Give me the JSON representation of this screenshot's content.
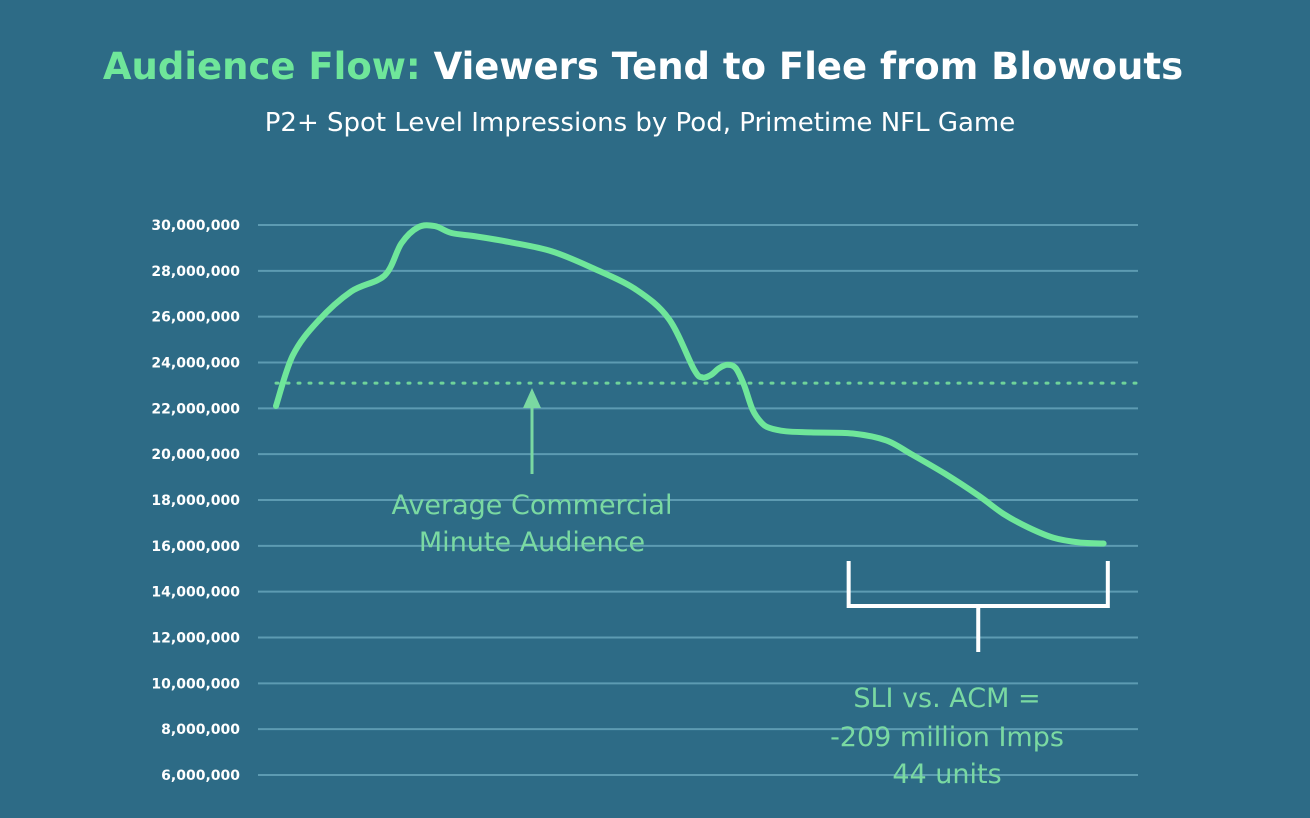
{
  "chart_data": {
    "type": "line",
    "title_highlight": "Audience Flow:",
    "title_rest": "Viewers Tend to Flee from Blowouts",
    "subtitle": "P2+ Spot Level Impressions by Pod, Primetime NFL Game",
    "xlabel": "",
    "ylabel": "",
    "ylim": [
      6000000,
      30000000
    ],
    "yticks": [
      {
        "value": 30000000,
        "label": "30,000,000"
      },
      {
        "value": 28000000,
        "label": "28,000,000"
      },
      {
        "value": 26000000,
        "label": "26,000,000"
      },
      {
        "value": 24000000,
        "label": "24,000,000"
      },
      {
        "value": 22000000,
        "label": "22,000,000"
      },
      {
        "value": 20000000,
        "label": "20,000,000"
      },
      {
        "value": 18000000,
        "label": "18,000,000"
      },
      {
        "value": 16000000,
        "label": "16,000,000"
      },
      {
        "value": 14000000,
        "label": "14,000,000"
      },
      {
        "value": 12000000,
        "label": "12,000,000"
      },
      {
        "value": 10000000,
        "label": "10,000,000"
      },
      {
        "value": 8000000,
        "label": "8,000,000"
      },
      {
        "value": 6000000,
        "label": "6,000,000"
      }
    ],
    "grid": true,
    "xlim": [
      0,
      100
    ],
    "series": [
      {
        "color": "#6fe69a",
        "x": [
          0,
          2,
          5,
          9,
          13,
          15,
          17,
          19,
          21,
          24,
          28,
          33,
          38,
          43,
          47,
          50,
          51,
          52,
          53,
          54,
          55,
          56,
          57,
          58,
          59,
          61,
          64,
          69,
          73,
          76,
          80,
          84,
          87,
          90,
          93,
          96,
          99
        ],
        "y": [
          22100000,
          24300000,
          25800000,
          27100000,
          27800000,
          29200000,
          29900000,
          29950000,
          29650000,
          29500000,
          29250000,
          28850000,
          28100000,
          27200000,
          25900000,
          23700000,
          23350000,
          23450000,
          23750000,
          23900000,
          23750000,
          23000000,
          21950000,
          21400000,
          21150000,
          21000000,
          20950000,
          20900000,
          20600000,
          20000000,
          19150000,
          18200000,
          17400000,
          16800000,
          16350000,
          16150000,
          16100000
        ]
      }
    ],
    "reference_line": {
      "value": 23100000,
      "color": "#6fd39a"
    },
    "annotation_average_line1": "Average Commercial",
    "annotation_average_line2": "Minute Audience",
    "bracket_range_x": [
      68.5,
      99.5
    ],
    "annotation_sli_line1": "SLI vs. ACM =",
    "annotation_sli_line2": "-209 million Imps",
    "annotation_sli_line3": "44 units",
    "colors": {
      "background": "#2d6b86",
      "accent": "#6fe69a",
      "annotation": "#7ad9a2",
      "text": "#ffffff",
      "grid": "#5d9bb2"
    }
  }
}
